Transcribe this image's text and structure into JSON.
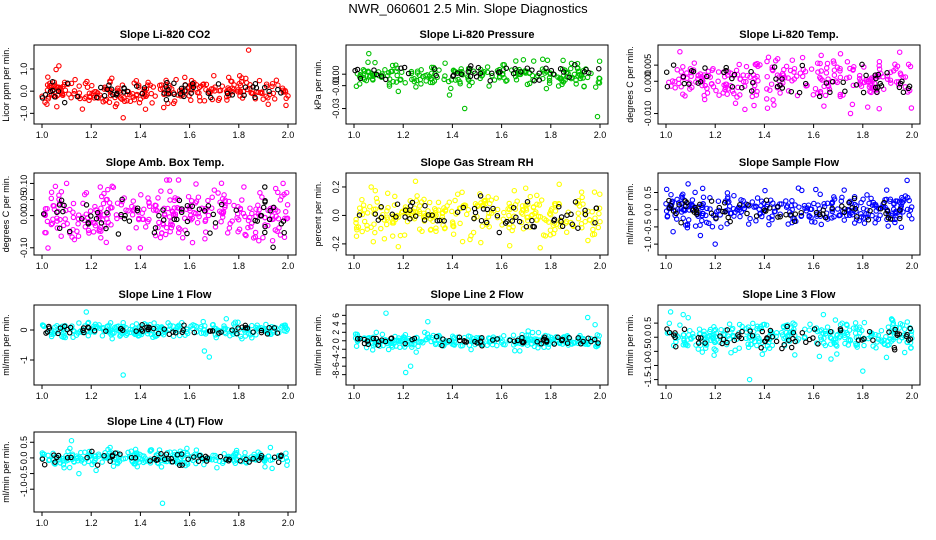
{
  "title": "NWR_060601  2.5 Min. Slope Diagnostics",
  "chart_data": [
    {
      "type": "scatter",
      "title": "Slope Li-820 CO2",
      "ylabel": "Licor ppm per min.",
      "color": "#ff0000",
      "xlim": [
        1.0,
        2.0
      ],
      "ylim": [
        -1.3,
        1.9
      ],
      "xticks": [
        "1.0",
        "1.2",
        "1.4",
        "1.6",
        "1.8",
        "2.0"
      ],
      "yticks": [
        "-1.0",
        "0.0",
        "1.0"
      ],
      "yticks_val": [
        -1.0,
        0.0,
        1.0
      ],
      "spread": 0.32,
      "n": 260,
      "seed": 11,
      "outliers": [
        [
          1.84,
          1.85
        ],
        [
          1.33,
          -1.2
        ],
        [
          1.06,
          -0.7
        ]
      ]
    },
    {
      "type": "scatter",
      "title": "Slope Li-820 Pressure",
      "ylabel": "kPa per min.",
      "color": "#00c000",
      "xlim": [
        1.0,
        2.0
      ],
      "ylim": [
        -0.04,
        0.022
      ],
      "xticks": [
        "1.0",
        "1.2",
        "1.4",
        "1.6",
        "1.8",
        "2.0"
      ],
      "yticks": [
        "-0.03",
        "-0.01",
        "0.00"
      ],
      "yticks_val": [
        -0.03,
        -0.01,
        0.0
      ],
      "spread": 0.005,
      "n": 220,
      "seed": 23,
      "outliers": [
        [
          1.06,
          0.018
        ],
        [
          1.45,
          -0.03
        ],
        [
          1.99,
          -0.037
        ],
        [
          1.18,
          -0.015
        ]
      ]
    },
    {
      "type": "scatter",
      "title": "Slope Li-820 Temp.",
      "ylabel": "degrees C per min.",
      "color": "#ff00ff",
      "xlim": [
        1.0,
        2.0
      ],
      "ylim": [
        -0.012,
        0.01
      ],
      "xticks": [
        "1.0",
        "1.2",
        "1.4",
        "1.6",
        "1.8",
        "2.0"
      ],
      "yticks": [
        "-0.010",
        "0.000",
        "0.005"
      ],
      "yticks_val": [
        -0.01,
        0.0,
        0.005
      ],
      "spread": 0.0035,
      "n": 260,
      "seed": 37,
      "outliers": [
        [
          1.95,
          0.009
        ],
        [
          1.82,
          -0.008
        ],
        [
          1.75,
          -0.01
        ]
      ]
    },
    {
      "type": "scatter",
      "title": "Slope Amb. Box Temp.",
      "ylabel": "degrees C per min.",
      "color": "#ff00ff",
      "xlim": [
        1.0,
        2.0
      ],
      "ylim": [
        -0.11,
        0.12
      ],
      "xticks": [
        "1.0",
        "1.2",
        "1.4",
        "1.6",
        "1.8",
        "2.0"
      ],
      "yticks": [
        "-0.10",
        "0.00",
        "0.05",
        "0.10"
      ],
      "yticks_val": [
        -0.1,
        0.0,
        0.05,
        0.1
      ],
      "spread": 0.045,
      "n": 300,
      "seed": 41,
      "outliers": [
        [
          1.1,
          0.1
        ],
        [
          1.4,
          -0.1
        ],
        [
          1.98,
          0.1
        ]
      ]
    },
    {
      "type": "scatter",
      "title": "Slope Gas Stream RH",
      "ylabel": "percent per min.",
      "color": "#ffff00",
      "xlim": [
        1.0,
        2.0
      ],
      "ylim": [
        -0.25,
        0.27
      ],
      "xticks": [
        "1.0",
        "1.2",
        "1.4",
        "1.6",
        "1.8",
        "2.0"
      ],
      "yticks": [
        "-0.2",
        "0.0",
        "0.2"
      ],
      "yticks_val": [
        -0.2,
        0.0,
        0.2
      ],
      "spread": 0.08,
      "n": 280,
      "seed": 53,
      "outliers": [
        [
          1.25,
          0.24
        ],
        [
          1.07,
          0.2
        ],
        [
          1.18,
          -0.22
        ]
      ]
    },
    {
      "type": "scatter",
      "title": "Slope Sample Flow",
      "ylabel": "ml/min per min.",
      "color": "#0000ff",
      "xlim": [
        1.0,
        2.0
      ],
      "ylim": [
        -1.2,
        0.95
      ],
      "xticks": [
        "1.0",
        "1.2",
        "1.4",
        "1.6",
        "1.8",
        "2.0"
      ],
      "yticks": [
        "-1.0",
        "-0.5",
        "0.0",
        "0.5"
      ],
      "yticks_val": [
        -1.0,
        -0.5,
        0.0,
        0.5
      ],
      "spread": 0.22,
      "n": 300,
      "seed": 67,
      "outliers": [
        [
          1.2,
          -1.0
        ],
        [
          1.09,
          0.75
        ],
        [
          1.98,
          0.85
        ],
        [
          1.14,
          -0.75
        ]
      ]
    },
    {
      "type": "scatter",
      "title": "Slope Line 1 Flow",
      "ylabel": "ml/min per min.",
      "color": "#00ffff",
      "xlim": [
        1.0,
        2.0
      ],
      "ylim": [
        -1.7,
        0.7
      ],
      "xticks": [
        "1.0",
        "1.2",
        "1.4",
        "1.6",
        "1.8",
        "2.0"
      ],
      "yticks": [
        "-1",
        "0"
      ],
      "yticks_val": [
        -1,
        0
      ],
      "spread": 0.12,
      "n": 260,
      "seed": 79,
      "outliers": [
        [
          1.33,
          -1.5
        ],
        [
          1.18,
          0.6
        ],
        [
          1.68,
          -0.9
        ],
        [
          1.66,
          -0.7
        ]
      ]
    },
    {
      "type": "scatter",
      "title": "Slope Line 2 Flow",
      "ylabel": "ml/min per min.",
      "color": "#00ffff",
      "xlim": [
        1.0,
        2.0
      ],
      "ylim": [
        -9.5,
        7.5
      ],
      "xticks": [
        "1.0",
        "1.2",
        "1.4",
        "1.6",
        "1.8",
        "2.0"
      ],
      "yticks": [
        "-8",
        "-6",
        "-4",
        "-2",
        "0",
        "2",
        "4",
        "6"
      ],
      "yticks_val": [
        -8,
        -6,
        -4,
        -2,
        0,
        2,
        4,
        6
      ],
      "spread": 0.8,
      "n": 280,
      "seed": 83,
      "outliers": [
        [
          1.13,
          6.5
        ],
        [
          1.21,
          -7.5
        ],
        [
          1.23,
          -6.0
        ],
        [
          1.3,
          4.5
        ],
        [
          1.95,
          5.5
        ],
        [
          1.98,
          3.8
        ]
      ]
    },
    {
      "type": "scatter",
      "title": "Slope Line 3 Flow",
      "ylabel": "ml/min per min.",
      "color": "#00ffff",
      "xlim": [
        1.0,
        2.0
      ],
      "ylim": [
        -1.55,
        1.0
      ],
      "xticks": [
        "1.0",
        "1.2",
        "1.4",
        "1.6",
        "1.8",
        "2.0"
      ],
      "yticks": [
        "-1.5",
        "-1.0",
        "-0.5",
        "0.0",
        "0.5"
      ],
      "yticks_val": [
        -1.5,
        -1.0,
        -0.5,
        0.0,
        0.5
      ],
      "spread": 0.3,
      "n": 300,
      "seed": 97,
      "outliers": [
        [
          1.34,
          -1.5
        ],
        [
          1.07,
          0.8
        ],
        [
          1.64,
          0.8
        ],
        [
          1.8,
          -1.2
        ]
      ]
    },
    {
      "type": "scatter",
      "title": "Slope Line 4 (LT) Flow",
      "ylabel": "ml/min per min.",
      "color": "#00ffff",
      "xlim": [
        1.0,
        2.0
      ],
      "ylim": [
        -1.6,
        0.7
      ],
      "xticks": [
        "1.0",
        "1.2",
        "1.4",
        "1.6",
        "1.8",
        "2.0"
      ],
      "yticks": [
        "-1.0",
        "-0.5",
        "0.0",
        "0.5"
      ],
      "yticks_val": [
        -1.0,
        -0.5,
        0.0,
        0.5
      ],
      "spread": 0.13,
      "n": 260,
      "seed": 101,
      "outliers": [
        [
          1.49,
          -1.45
        ],
        [
          1.12,
          0.55
        ],
        [
          1.15,
          -0.5
        ],
        [
          1.22,
          -0.4
        ]
      ]
    }
  ]
}
